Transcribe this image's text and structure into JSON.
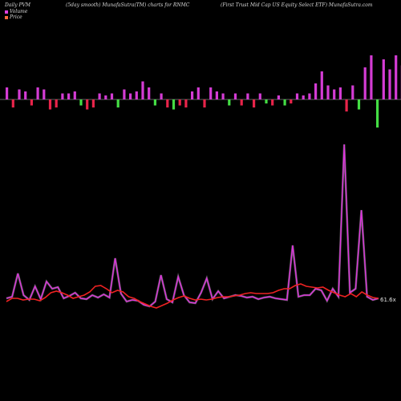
{
  "header": {
    "left": "Daily PVM",
    "middle": "(5day smooth) MunafaSutra(TM) charts for RNMC",
    "right": "(First Trust Mid Cap US Equity Select ETF) MunafaSutra.com"
  },
  "legend": {
    "volume_label": "Volume",
    "price_label": "Price",
    "volume_color": "#e040e0",
    "price_color": "#ff6a3d"
  },
  "colors": {
    "background": "#000000",
    "volume_up": "#d43cd4",
    "volume_down": "#e8244a",
    "volume_flat": "#44dd44",
    "zero_line": "#bfbfbf",
    "volume_line": "#dd33dd",
    "price_line": "#ee2222"
  },
  "chart_data": {
    "type": "bar",
    "volume_bars": [
      6,
      -4,
      5,
      4,
      -3,
      6,
      5,
      -5,
      -4,
      3,
      3,
      4,
      -3,
      -5,
      -4,
      3,
      2,
      3,
      -4,
      5,
      3,
      4,
      9,
      6,
      -3,
      3,
      -4,
      -5,
      -3,
      -4,
      4,
      6,
      -4,
      6,
      4,
      3,
      -3,
      3,
      -3,
      3,
      -4,
      3,
      -2,
      -3,
      2,
      -3,
      -2,
      3,
      2,
      3,
      8,
      14,
      7,
      5,
      6,
      -6,
      7,
      -5,
      16,
      22,
      -14,
      20,
      15,
      22,
      17,
      18,
      11,
      13,
      -9,
      18,
      10,
      12,
      -8,
      -10
    ],
    "volume_line": [
      372,
      370,
      341,
      368,
      374,
      357,
      373,
      351,
      360,
      358,
      372,
      369,
      365,
      372,
      373,
      368,
      371,
      367,
      371,
      322,
      366,
      376,
      374,
      375,
      380,
      382,
      376,
      343,
      373,
      377,
      345,
      368,
      377,
      378,
      365,
      347,
      373,
      363,
      372,
      370,
      368,
      369,
      371,
      370,
      373,
      371,
      370,
      372,
      373,
      374,
      306,
      370,
      368,
      368,
      360,
      362,
      375,
      360,
      370,
      180,
      365,
      360,
      262,
      370,
      374,
      372
    ],
    "price_line": [
      376,
      372,
      372,
      374,
      373,
      373,
      375,
      371,
      365,
      363,
      365,
      368,
      372,
      370,
      368,
      364,
      357,
      356,
      360,
      365,
      362,
      364,
      370,
      372,
      376,
      379,
      382,
      384,
      381,
      378,
      374,
      371,
      369,
      372,
      374,
      373,
      374,
      373,
      371,
      370,
      370,
      369,
      368,
      366,
      365,
      366,
      366,
      366,
      365,
      362,
      360,
      360,
      356,
      354,
      357,
      358,
      359,
      358,
      362,
      365,
      368,
      370,
      366,
      370,
      364,
      368,
      371,
      372
    ],
    "price_label": "61.6x"
  }
}
